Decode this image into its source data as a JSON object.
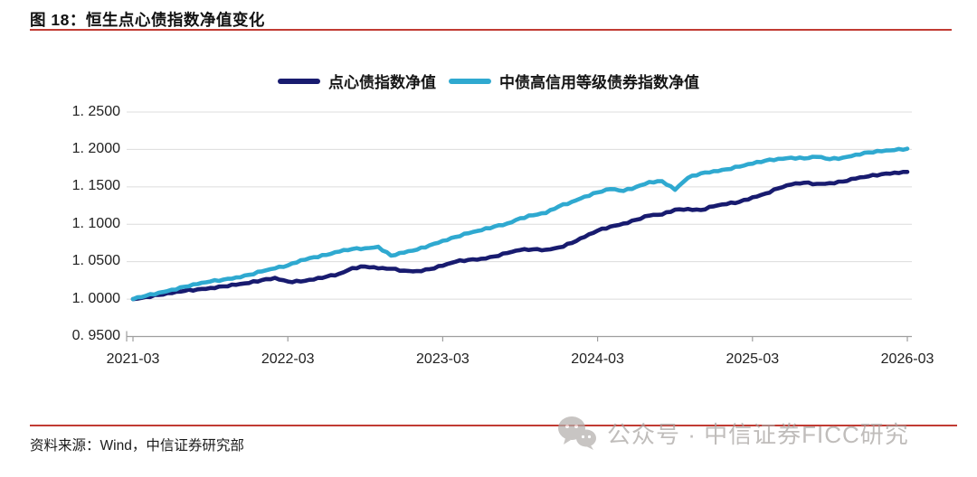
{
  "figure": {
    "title": "图 18：恒生点心债指数净值变化",
    "source_note": "资料来源：Wind，中信证券研究部"
  },
  "watermark": {
    "icon": "wechat-icon",
    "text": "公众号 · 中信证券FICC研究"
  },
  "colors": {
    "accent_red": "#c13b33",
    "navy": "#181b6f",
    "cyan": "#2fa9d0",
    "grid": "#dcdcdc",
    "axis": "#9e9e9e",
    "watermark_gray": "#b3afac"
  },
  "chart_data": {
    "type": "line",
    "title": "恒生点心债指数净值变化",
    "xlabel": "",
    "ylabel": "",
    "ylim": [
      0.95,
      1.25
    ],
    "grid": "horizontal",
    "legend_position": "top-center",
    "y_ticks": [
      1.25,
      1.2,
      1.15,
      1.1,
      1.05,
      1.0,
      0.95
    ],
    "y_tick_labels": [
      "1. 2500",
      "1. 2000",
      "1. 1500",
      "1. 1000",
      "1. 0500",
      "1. 0000",
      "0. 9500"
    ],
    "x_tick_labels": [
      "2021-03",
      "2022-03",
      "2023-03",
      "2024-03",
      "2025-03",
      "2026-03"
    ],
    "x": [
      "2021-03",
      "2021-04",
      "2021-05",
      "2021-06",
      "2021-07",
      "2021-08",
      "2021-09",
      "2021-10",
      "2021-11",
      "2021-12",
      "2022-01",
      "2022-02",
      "2022-03",
      "2022-04",
      "2022-05",
      "2022-06",
      "2022-07",
      "2022-08",
      "2022-09",
      "2022-10",
      "2022-11",
      "2022-12",
      "2023-01",
      "2023-02",
      "2023-03",
      "2023-04",
      "2023-05",
      "2023-06",
      "2023-07",
      "2023-08",
      "2023-09",
      "2023-10",
      "2023-11",
      "2023-12",
      "2024-01",
      "2024-02",
      "2024-03",
      "2024-04",
      "2024-05",
      "2024-06",
      "2024-07",
      "2024-08",
      "2024-09",
      "2024-10",
      "2024-11",
      "2024-12",
      "2025-01",
      "2025-02",
      "2025-03",
      "2025-04",
      "2025-05",
      "2025-06",
      "2025-07",
      "2025-08",
      "2025-09",
      "2025-10",
      "2025-11",
      "2025-12",
      "2026-01",
      "2026-02",
      "2026-03"
    ],
    "series": [
      {
        "name": "点心债指数净值",
        "color_key": "navy",
        "values": [
          1.0,
          1.003,
          1.0055,
          1.008,
          1.011,
          1.013,
          1.015,
          1.017,
          1.019,
          1.0215,
          1.0255,
          1.0285,
          1.0235,
          1.0235,
          1.026,
          1.03,
          1.034,
          1.0415,
          1.0435,
          1.041,
          1.0405,
          1.038,
          1.0375,
          1.04,
          1.0445,
          1.05,
          1.0525,
          1.054,
          1.057,
          1.0615,
          1.0655,
          1.0665,
          1.066,
          1.069,
          1.075,
          1.083,
          1.0915,
          1.097,
          1.101,
          1.106,
          1.1115,
          1.113,
          1.1195,
          1.1205,
          1.119,
          1.124,
          1.127,
          1.13,
          1.136,
          1.141,
          1.148,
          1.153,
          1.1555,
          1.154,
          1.155,
          1.157,
          1.161,
          1.164,
          1.167,
          1.169,
          1.17
        ]
      },
      {
        "name": "中债高信用等级债券指数净值",
        "color_key": "cyan",
        "values": [
          1.0,
          1.0045,
          1.0085,
          1.0125,
          1.0165,
          1.02,
          1.0235,
          1.026,
          1.029,
          1.0325,
          1.037,
          1.041,
          1.045,
          1.052,
          1.056,
          1.059,
          1.0635,
          1.067,
          1.068,
          1.07,
          1.058,
          1.062,
          1.066,
          1.072,
          1.078,
          1.083,
          1.088,
          1.092,
          1.097,
          1.101,
          1.108,
          1.112,
          1.115,
          1.124,
          1.13,
          1.137,
          1.1425,
          1.147,
          1.1445,
          1.15,
          1.1565,
          1.1575,
          1.146,
          1.162,
          1.168,
          1.171,
          1.1735,
          1.177,
          1.181,
          1.185,
          1.1875,
          1.189,
          1.188,
          1.19,
          1.187,
          1.189,
          1.193,
          1.196,
          1.1975,
          1.199,
          1.201
        ]
      }
    ]
  }
}
